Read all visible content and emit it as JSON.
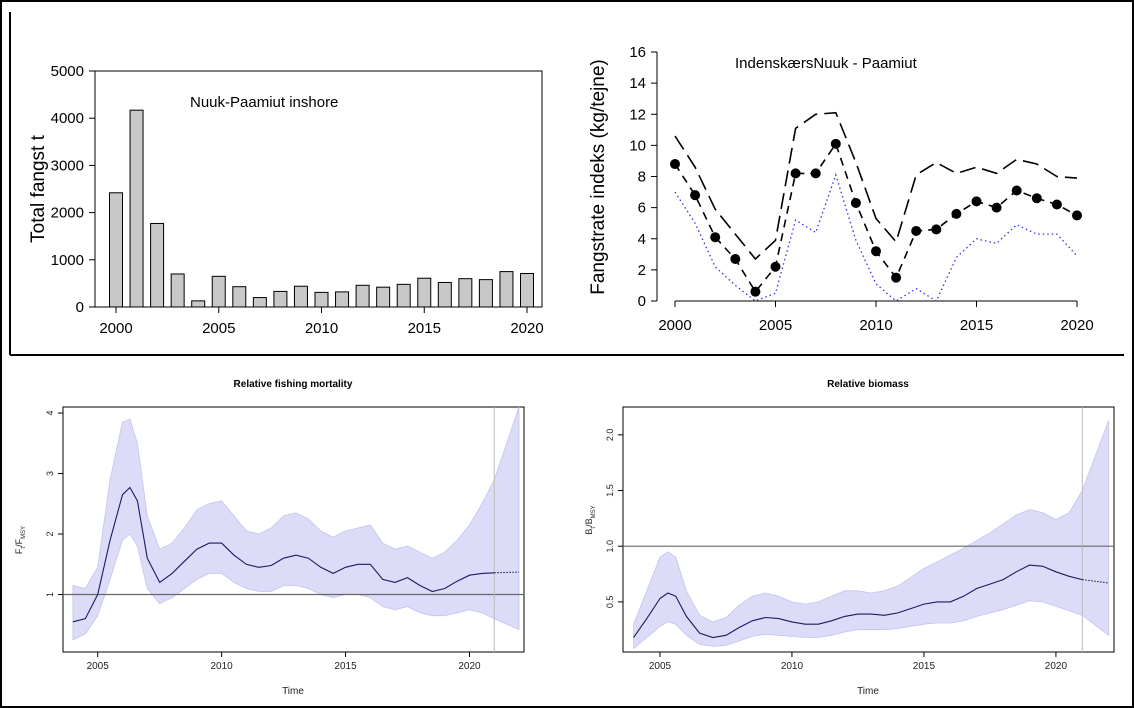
{
  "chart_data": [
    {
      "type": "bar",
      "title": "Nuuk-Paamiut inshore",
      "ylabel": "Total fangst t",
      "xlabel": "",
      "x": [
        2000,
        2001,
        2002,
        2003,
        2004,
        2005,
        2006,
        2007,
        2008,
        2009,
        2010,
        2011,
        2012,
        2013,
        2014,
        2015,
        2016,
        2017,
        2018,
        2019,
        2020
      ],
      "values": [
        2420,
        4170,
        1770,
        700,
        130,
        650,
        430,
        200,
        330,
        440,
        310,
        320,
        460,
        420,
        480,
        610,
        520,
        600,
        580,
        750,
        710
      ],
      "xticks": [
        "2000",
        "2005",
        "2010",
        "2015",
        "2020"
      ],
      "yticks": [
        "0",
        "1000",
        "2000",
        "3000",
        "4000",
        "5000"
      ],
      "ylim": [
        0,
        5000
      ],
      "bar_color": "#c8c8c8"
    },
    {
      "type": "line",
      "title": "IndenskærsNuuk - Paamiut",
      "ylabel": "Fangstrate indeks (kg/tejne)",
      "xlabel": "",
      "x": [
        2000,
        2001,
        2002,
        2003,
        2004,
        2005,
        2006,
        2007,
        2008,
        2009,
        2010,
        2011,
        2012,
        2013,
        2014,
        2015,
        2016,
        2017,
        2018,
        2019,
        2020
      ],
      "series": [
        {
          "style": "points-dashed",
          "values": [
            8.8,
            6.8,
            4.1,
            2.7,
            0.6,
            2.2,
            8.2,
            8.2,
            10.1,
            6.3,
            3.2,
            1.5,
            4.5,
            4.6,
            5.6,
            6.4,
            6.0,
            7.1,
            6.6,
            6.2,
            5.5
          ]
        },
        {
          "style": "long-dash",
          "values": [
            10.6,
            8.6,
            5.9,
            4.3,
            2.7,
            3.9,
            11.1,
            12.0,
            12.1,
            8.9,
            5.3,
            3.8,
            8.1,
            8.9,
            8.2,
            8.6,
            8.2,
            9.1,
            8.8,
            8.0,
            7.9
          ]
        },
        {
          "style": "dotted",
          "values": [
            7.0,
            5.0,
            2.2,
            1.0,
            0.0,
            0.5,
            5.2,
            4.4,
            8.1,
            3.9,
            1.1,
            0.0,
            0.8,
            0.0,
            2.8,
            4.0,
            3.7,
            4.9,
            4.3,
            4.3,
            2.9
          ]
        }
      ],
      "xticks": [
        "2000",
        "2005",
        "2010",
        "2015",
        "2020"
      ],
      "yticks": [
        "0",
        "2",
        "4",
        "6",
        "8",
        "10",
        "12",
        "14",
        "16"
      ],
      "ylim": [
        0,
        16
      ]
    },
    {
      "type": "line",
      "title": "Relative fishing mortality",
      "xlabel": "Time",
      "ylabel_main": "F",
      "ylabel_sub1": "t",
      "ylabel_mid": "/F",
      "ylabel_sub2": "MSY",
      "x": [
        2004.0,
        2004.5,
        2005.0,
        2005.5,
        2006.0,
        2006.3,
        2006.6,
        2007.0,
        2007.5,
        2008.0,
        2008.5,
        2009.0,
        2009.5,
        2010.0,
        2010.5,
        2011.0,
        2011.5,
        2012.0,
        2012.5,
        2013.0,
        2013.5,
        2014.0,
        2014.5,
        2015.0,
        2015.5,
        2016.0,
        2016.5,
        2017.0,
        2017.5,
        2018.0,
        2018.5,
        2019.0,
        2019.5,
        2020.0,
        2020.5,
        2021.0
      ],
      "median": [
        0.55,
        0.6,
        1.0,
        1.9,
        2.65,
        2.77,
        2.55,
        1.6,
        1.2,
        1.35,
        1.55,
        1.75,
        1.85,
        1.85,
        1.65,
        1.5,
        1.45,
        1.48,
        1.6,
        1.65,
        1.6,
        1.45,
        1.35,
        1.45,
        1.5,
        1.5,
        1.25,
        1.2,
        1.28,
        1.15,
        1.05,
        1.1,
        1.22,
        1.32,
        1.35,
        1.36
      ],
      "upper": [
        1.15,
        1.1,
        1.45,
        2.9,
        3.85,
        3.9,
        3.5,
        2.3,
        1.75,
        1.85,
        2.1,
        2.4,
        2.5,
        2.55,
        2.3,
        2.05,
        2.0,
        2.1,
        2.3,
        2.35,
        2.25,
        2.05,
        1.95,
        2.05,
        2.1,
        2.15,
        1.85,
        1.75,
        1.8,
        1.7,
        1.6,
        1.7,
        1.9,
        2.15,
        2.5,
        2.9
      ],
      "lower": [
        0.25,
        0.35,
        0.65,
        1.25,
        1.9,
        2.0,
        1.8,
        1.1,
        0.85,
        0.95,
        1.1,
        1.25,
        1.35,
        1.35,
        1.2,
        1.1,
        1.05,
        1.05,
        1.15,
        1.15,
        1.1,
        1.0,
        0.95,
        1.0,
        1.0,
        0.95,
        0.8,
        0.75,
        0.8,
        0.7,
        0.65,
        0.65,
        0.7,
        0.75,
        0.7,
        0.6
      ],
      "projection_x": [
        2021.0,
        2022.0
      ],
      "projection_median": [
        1.36,
        1.37
      ],
      "projection_upper": [
        2.9,
        4.1
      ],
      "projection_lower": [
        0.6,
        0.42
      ],
      "reference_line": 1.0,
      "vertical_line": 2021,
      "xticks": [
        "2005",
        "2010",
        "2015",
        "2020"
      ],
      "yticks": [
        "1",
        "2",
        "3",
        "4"
      ],
      "xlim": [
        2003.6,
        2022.2
      ],
      "ylim": [
        0.05,
        4.1
      ],
      "band_color": "#dcdcf8"
    },
    {
      "type": "line",
      "title": "Relative biomass",
      "xlabel": "Time",
      "ylabel_main": "B",
      "ylabel_sub1": "t",
      "ylabel_mid": "/B",
      "ylabel_sub2": "MSY",
      "x": [
        2004.0,
        2004.5,
        2005.0,
        2005.3,
        2005.6,
        2006.0,
        2006.5,
        2007.0,
        2007.5,
        2008.0,
        2008.5,
        2009.0,
        2009.5,
        2010.0,
        2010.5,
        2011.0,
        2011.5,
        2012.0,
        2012.5,
        2013.0,
        2013.5,
        2014.0,
        2014.5,
        2015.0,
        2015.5,
        2016.0,
        2016.5,
        2017.0,
        2017.5,
        2018.0,
        2018.5,
        2019.0,
        2019.5,
        2020.0,
        2020.5,
        2021.0
      ],
      "median": [
        0.18,
        0.35,
        0.53,
        0.58,
        0.55,
        0.37,
        0.22,
        0.18,
        0.2,
        0.27,
        0.33,
        0.36,
        0.35,
        0.32,
        0.3,
        0.3,
        0.33,
        0.37,
        0.39,
        0.39,
        0.38,
        0.4,
        0.44,
        0.48,
        0.5,
        0.5,
        0.55,
        0.62,
        0.66,
        0.7,
        0.77,
        0.83,
        0.82,
        0.77,
        0.73,
        0.7
      ],
      "upper": [
        0.3,
        0.6,
        0.9,
        0.95,
        0.9,
        0.6,
        0.38,
        0.32,
        0.36,
        0.47,
        0.55,
        0.58,
        0.55,
        0.5,
        0.48,
        0.5,
        0.55,
        0.6,
        0.6,
        0.58,
        0.6,
        0.64,
        0.72,
        0.8,
        0.86,
        0.92,
        0.98,
        1.05,
        1.12,
        1.2,
        1.28,
        1.33,
        1.3,
        1.24,
        1.3,
        1.5
      ],
      "lower": [
        0.08,
        0.18,
        0.28,
        0.32,
        0.3,
        0.2,
        0.12,
        0.1,
        0.11,
        0.15,
        0.19,
        0.21,
        0.2,
        0.19,
        0.18,
        0.18,
        0.2,
        0.23,
        0.25,
        0.25,
        0.25,
        0.26,
        0.28,
        0.3,
        0.31,
        0.31,
        0.33,
        0.37,
        0.4,
        0.43,
        0.47,
        0.51,
        0.5,
        0.46,
        0.42,
        0.38
      ],
      "projection_x": [
        2021.0,
        2022.0
      ],
      "projection_median": [
        0.7,
        0.67
      ],
      "projection_upper": [
        1.5,
        2.13
      ],
      "projection_lower": [
        0.38,
        0.2
      ],
      "reference_line": 1.0,
      "vertical_line": 2021,
      "xticks": [
        "2005",
        "2010",
        "2015",
        "2020"
      ],
      "yticks": [
        "0.5",
        "1.0",
        "1.5",
        "2.0"
      ],
      "xlim": [
        2003.6,
        2022.2
      ],
      "ylim": [
        0.05,
        2.25
      ],
      "band_color": "#dcdcf8"
    }
  ]
}
